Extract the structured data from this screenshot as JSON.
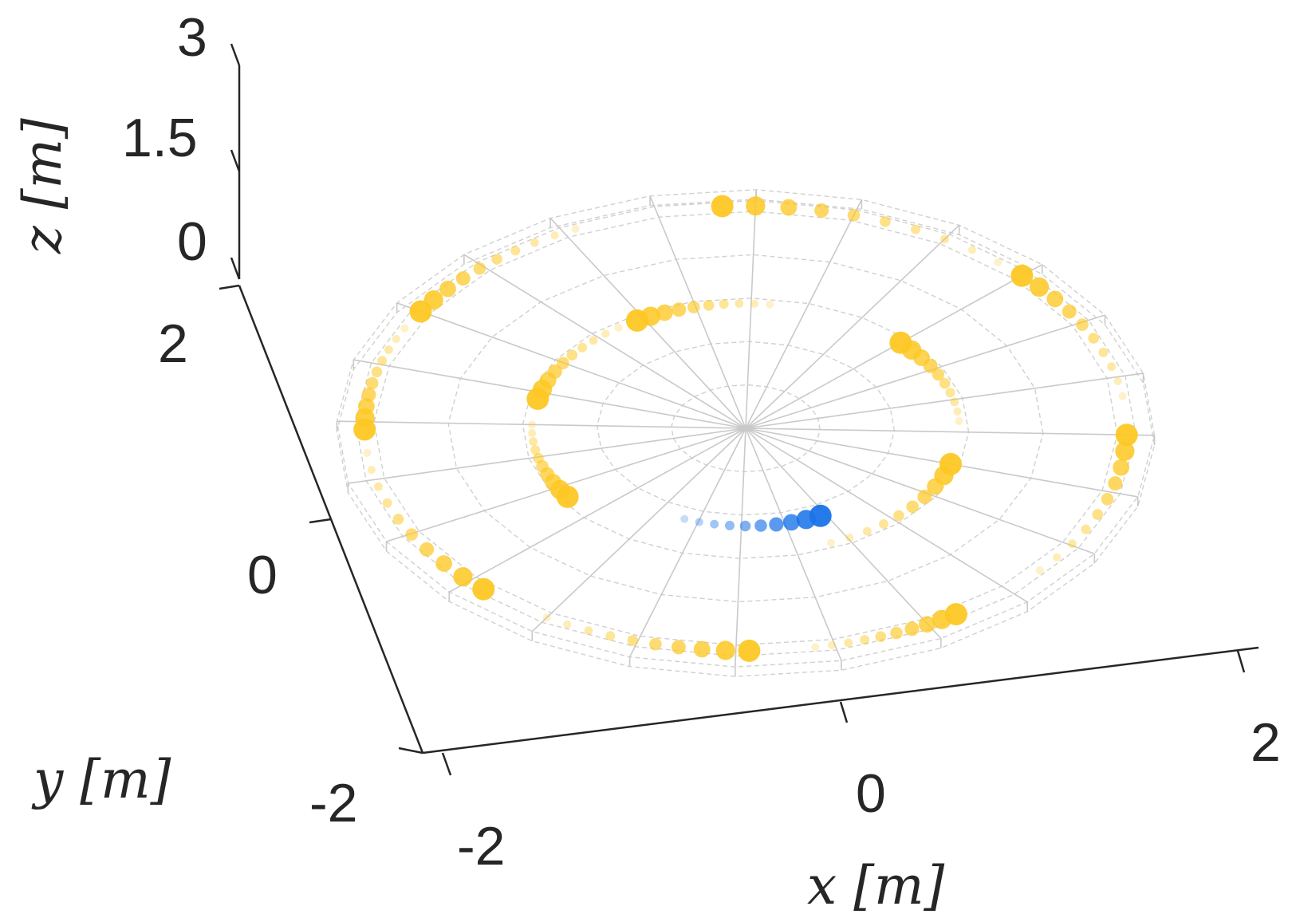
{
  "chart_data": {
    "type": "scatter",
    "projection": "3d",
    "xlabel": "x [m]",
    "ylabel": "y [m]",
    "zlabel": "z [m]",
    "xlim": [
      -2,
      2
    ],
    "ylim": [
      -2,
      2
    ],
    "zlim": [
      0,
      3
    ],
    "x_ticks": [
      "-2",
      "0",
      "2"
    ],
    "y_ticks": [
      "-2",
      "0",
      "2"
    ],
    "z_ticks": [
      "0",
      "1.5",
      "3"
    ],
    "grid": "polar (circles + radial spokes) at z = 0",
    "colors": {
      "agents": "#fdc825",
      "ego": "#1a73e8"
    },
    "series": [
      {
        "role": "agents",
        "color": "#fdc825",
        "tracks": [
          {
            "r": 2.05,
            "a_start": 95,
            "a_end": 50
          },
          {
            "r": 2.05,
            "a_start": 150,
            "a_end": 118
          },
          {
            "r": 2.05,
            "a_start": 182,
            "a_end": 155
          },
          {
            "r": 2.05,
            "a_start": 228,
            "a_end": 188
          },
          {
            "r": 2.05,
            "a_start": 272,
            "a_end": 240
          },
          {
            "r": 2.05,
            "a_start": 305,
            "a_end": 282
          },
          {
            "r": 2.05,
            "a_start": 0,
            "a_end": 322
          },
          {
            "r": 2.05,
            "a_start": 45,
            "a_end": 10
          },
          {
            "r": 1.15,
            "a_start": 122,
            "a_end": 85
          },
          {
            "r": 1.15,
            "a_start": 168,
            "a_end": 128
          },
          {
            "r": 1.15,
            "a_start": 215,
            "a_end": 180
          },
          {
            "r": 1.15,
            "a_start": 345,
            "a_end": 295
          },
          {
            "r": 1.15,
            "a_start": 45,
            "a_end": 5
          }
        ]
      },
      {
        "role": "ego",
        "color": "#1a73e8",
        "tracks": [
          {
            "r": 0.9,
            "a_start": 298,
            "a_end": 250
          }
        ]
      }
    ]
  }
}
